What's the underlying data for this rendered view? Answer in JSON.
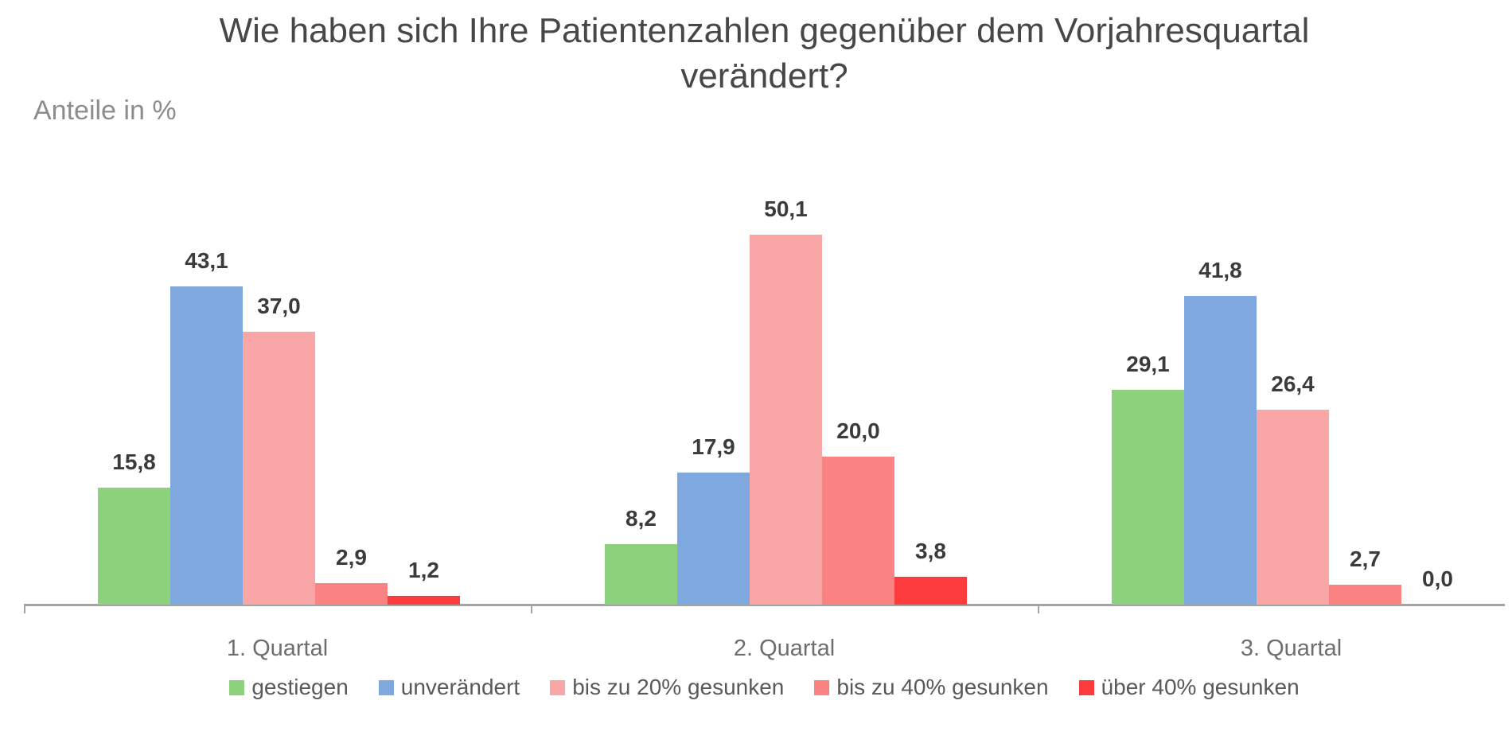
{
  "page": {
    "background_color": "#ffffff"
  },
  "chart_data": {
    "type": "bar",
    "title": "Wie haben sich Ihre Patientenzahlen gegenüber dem Vorjahresquartal verändert?",
    "units_label": "Anteile in %",
    "categories": [
      "1. Quartal",
      "2. Quartal",
      "3. Quartal"
    ],
    "series": [
      {
        "name": "gestiegen",
        "color": "#8ED17D",
        "values": [
          15.8,
          8.2,
          29.1
        ],
        "labels": [
          "15,8",
          "8,2",
          "29,1"
        ]
      },
      {
        "name": "unverändert",
        "color": "#7FA8DE",
        "values": [
          43.1,
          17.9,
          41.8
        ],
        "labels": [
          "43,1",
          "17,9",
          "41,8"
        ]
      },
      {
        "name": "bis zu 20% gesunken",
        "color": "#FBA6A6",
        "values": [
          37.0,
          50.1,
          26.4
        ],
        "labels": [
          "37,0",
          "50,1",
          "26,4"
        ]
      },
      {
        "name": "bis zu 40% gesunken",
        "color": "#FB8282",
        "values": [
          2.9,
          20.0,
          2.7
        ],
        "labels": [
          "2,9",
          "20,0",
          "2,7"
        ]
      },
      {
        "name": "über 40% gesunken",
        "color": "#FC3C3C",
        "values": [
          1.2,
          3.8,
          0.0
        ],
        "labels": [
          "1,2",
          "3,8",
          "0,0"
        ]
      }
    ],
    "ylim": [
      0,
      60
    ],
    "grid": false,
    "y_axis_shown": false,
    "legend_position": "bottom",
    "data_labels": true,
    "axis_color": "#A3A3A3"
  }
}
